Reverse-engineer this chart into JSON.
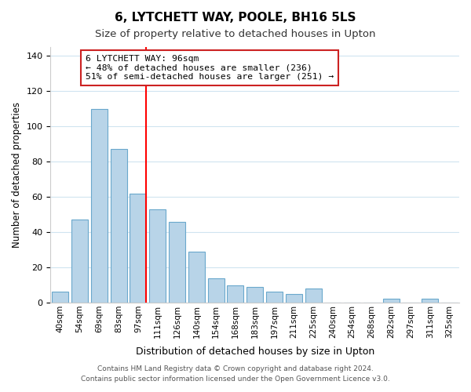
{
  "title": "6, LYTCHETT WAY, POOLE, BH16 5LS",
  "subtitle": "Size of property relative to detached houses in Upton",
  "xlabel": "Distribution of detached houses by size in Upton",
  "ylabel": "Number of detached properties",
  "bar_color": "#b8d4e8",
  "bar_edge_color": "#6aa8cc",
  "vline_color": "red",
  "vline_x": 4.425,
  "categories": [
    "40sqm",
    "54sqm",
    "69sqm",
    "83sqm",
    "97sqm",
    "111sqm",
    "126sqm",
    "140sqm",
    "154sqm",
    "168sqm",
    "183sqm",
    "197sqm",
    "211sqm",
    "225sqm",
    "240sqm",
    "254sqm",
    "268sqm",
    "282sqm",
    "297sqm",
    "311sqm",
    "325sqm"
  ],
  "values": [
    6,
    47,
    110,
    87,
    62,
    53,
    46,
    29,
    14,
    10,
    9,
    6,
    5,
    8,
    0,
    0,
    0,
    2,
    0,
    2,
    0
  ],
  "ylim": [
    0,
    145
  ],
  "yticks": [
    0,
    20,
    40,
    60,
    80,
    100,
    120,
    140
  ],
  "annotation_box_text": "6 LYTCHETT WAY: 96sqm\n← 48% of detached houses are smaller (236)\n51% of semi-detached houses are larger (251) →",
  "footer_line1": "Contains HM Land Registry data © Crown copyright and database right 2024.",
  "footer_line2": "Contains public sector information licensed under the Open Government Licence v3.0.",
  "background_color": "#ffffff",
  "grid_color": "#d0e4f0"
}
